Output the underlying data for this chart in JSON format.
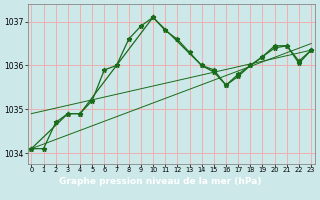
{
  "series1_x": [
    0,
    1,
    2,
    3,
    4,
    5,
    6,
    7,
    8,
    9,
    10,
    11,
    12,
    13,
    14,
    15,
    16,
    17,
    18,
    19,
    20,
    21,
    22,
    23
  ],
  "series1_y": [
    1034.1,
    1034.1,
    1034.7,
    1034.9,
    1034.9,
    1035.2,
    1035.9,
    1036.0,
    1036.6,
    1036.9,
    1037.1,
    1036.8,
    1036.6,
    1036.3,
    1036.0,
    1035.9,
    1035.55,
    1035.8,
    1036.0,
    1036.2,
    1036.4,
    1036.45,
    1036.1,
    1036.35
  ],
  "series2_x": [
    0,
    3,
    4,
    10,
    14,
    15,
    16,
    17,
    18,
    19,
    20,
    21,
    22,
    23
  ],
  "series2_y": [
    1034.1,
    1034.9,
    1034.9,
    1037.1,
    1036.0,
    1035.85,
    1035.55,
    1035.75,
    1036.0,
    1036.2,
    1036.45,
    1036.45,
    1036.05,
    1036.35
  ],
  "trend_x": [
    0,
    23
  ],
  "trend_y": [
    1034.1,
    1036.5
  ],
  "trend2_x": [
    0,
    23
  ],
  "trend2_y": [
    1034.9,
    1036.35
  ],
  "line_color": "#1a6b1a",
  "bg_color": "#cce8e8",
  "grid_color": "#f0b0b0",
  "xlabel": "Graphe pression niveau de la mer (hPa)",
  "yticks": [
    1034,
    1035,
    1036,
    1037
  ],
  "xticks": [
    0,
    1,
    2,
    3,
    4,
    5,
    6,
    7,
    8,
    9,
    10,
    11,
    12,
    13,
    14,
    15,
    16,
    17,
    18,
    19,
    20,
    21,
    22,
    23
  ],
  "ylim": [
    1033.75,
    1037.4
  ],
  "xlim": [
    -0.3,
    23.3
  ]
}
